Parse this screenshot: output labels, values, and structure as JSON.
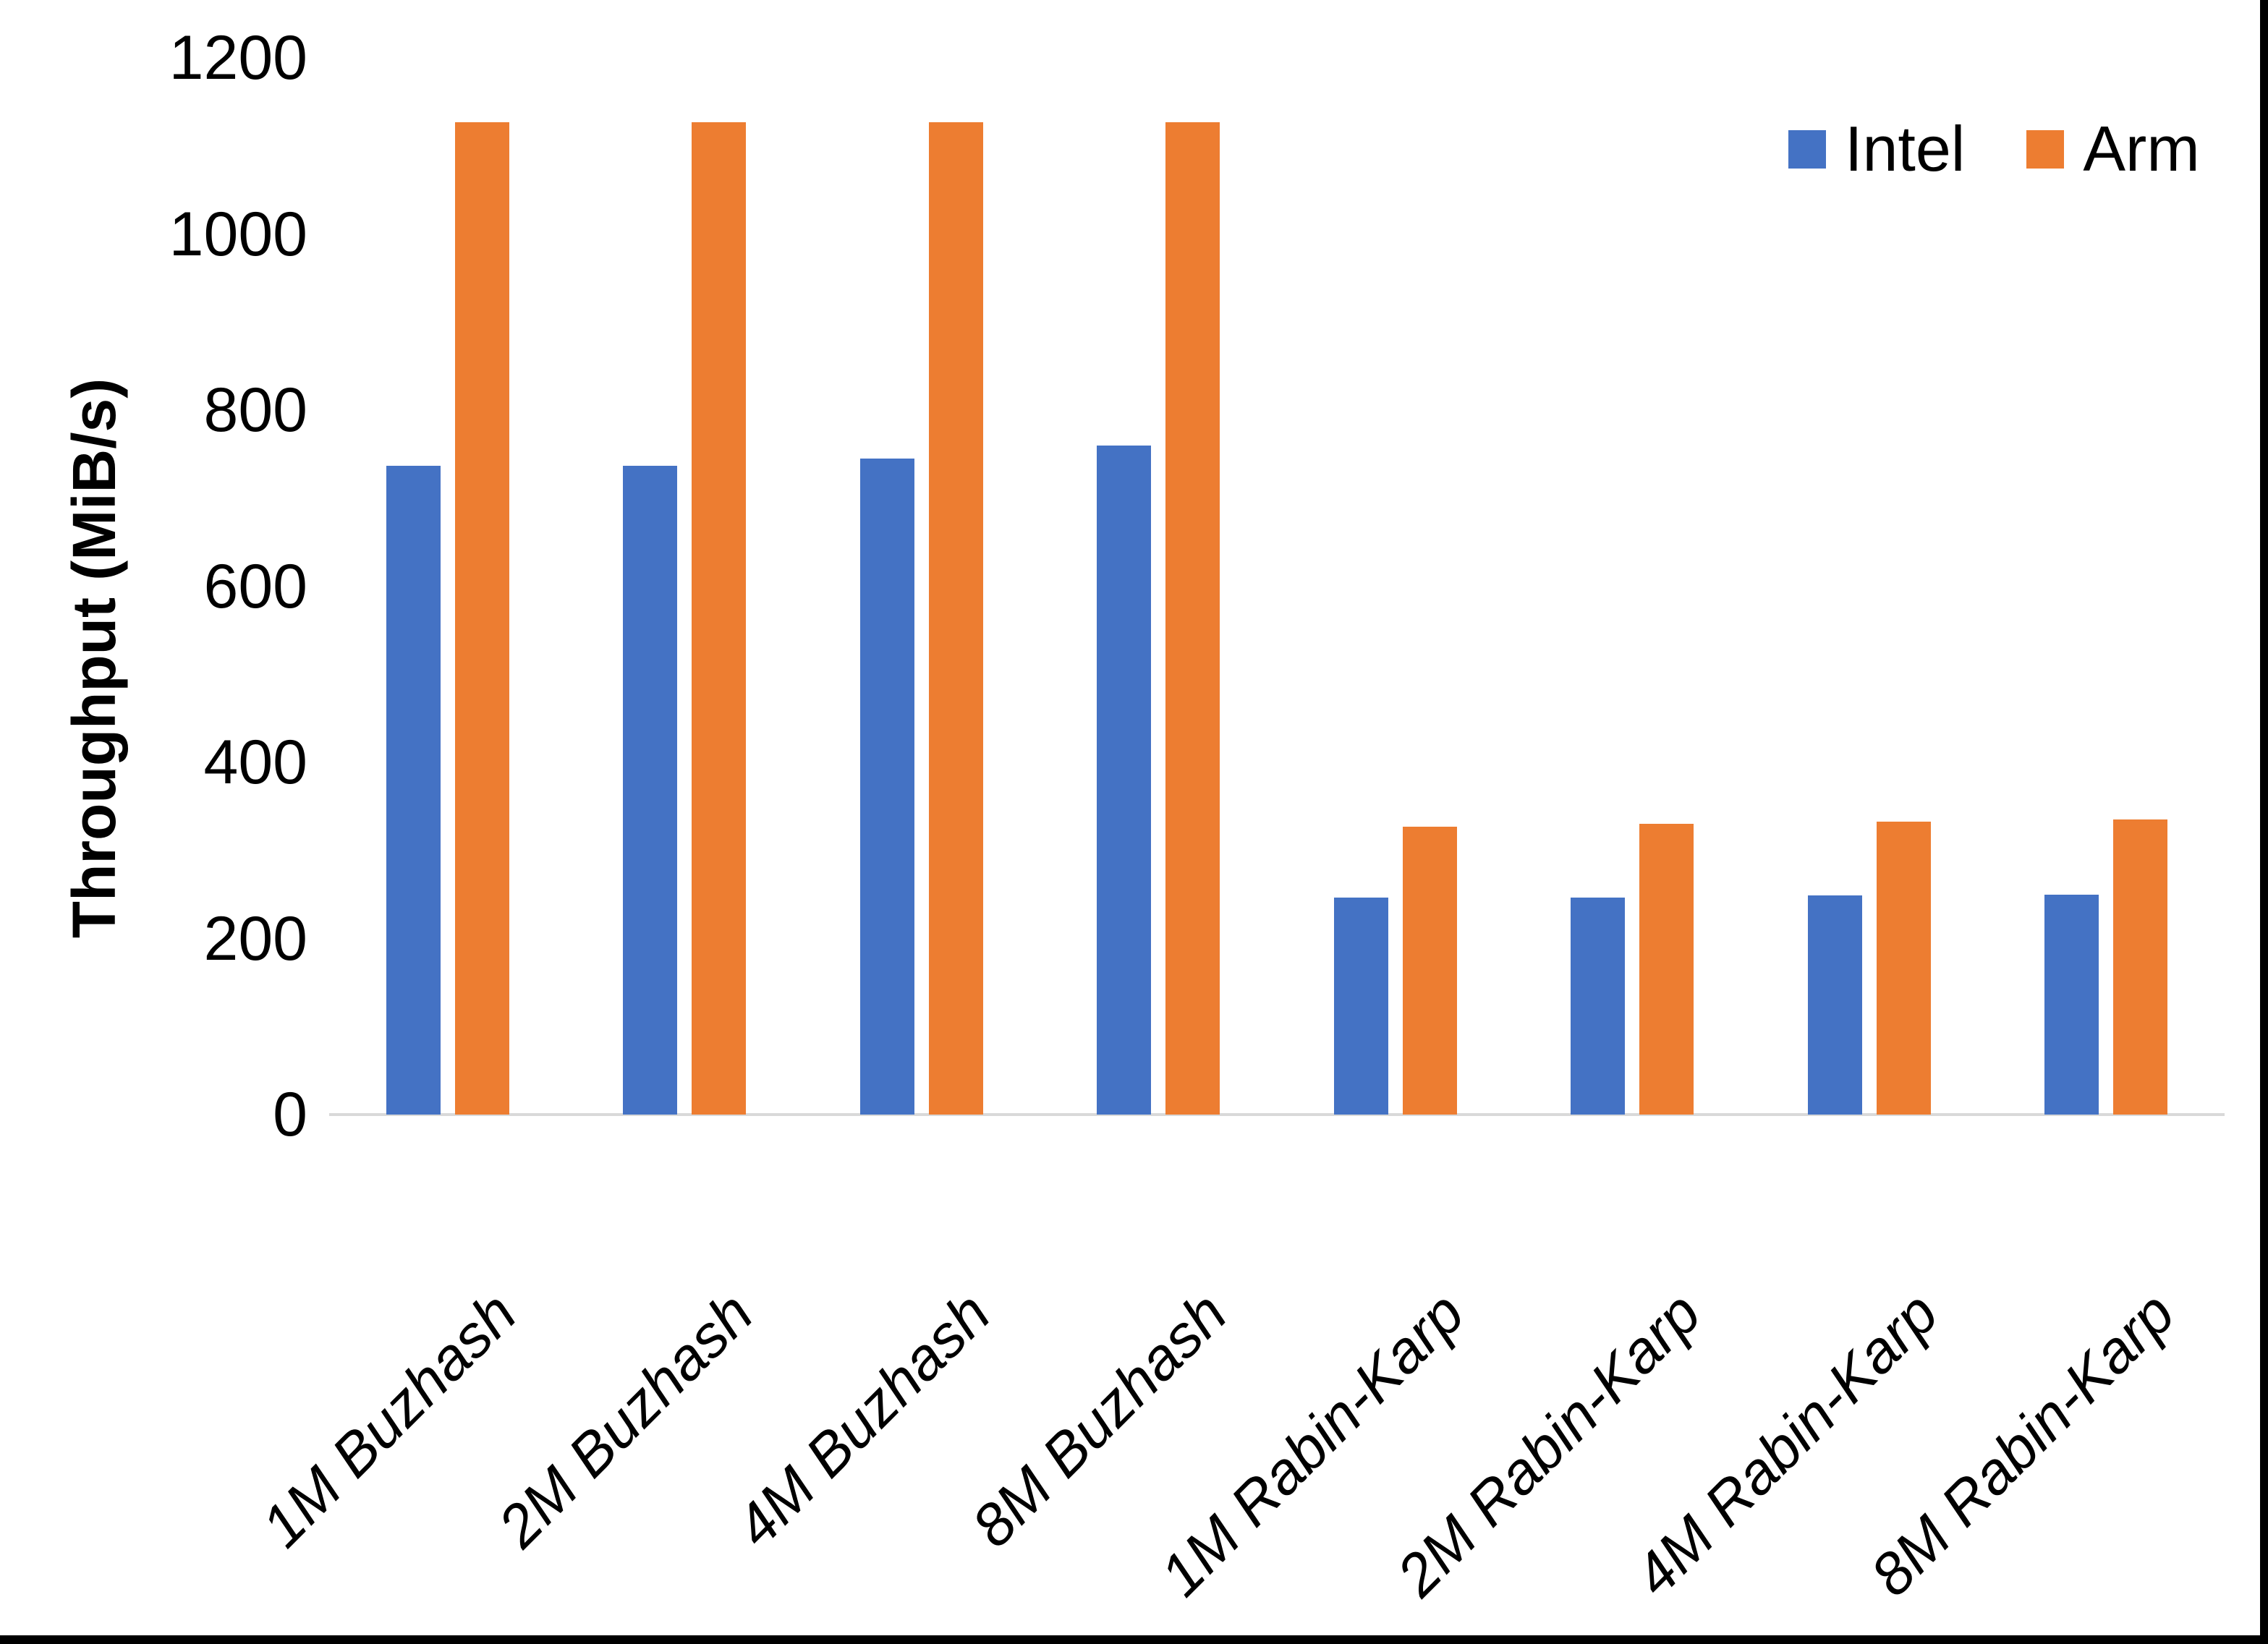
{
  "chart_data": {
    "type": "bar",
    "title": "",
    "xlabel": "",
    "ylabel": "Throughput (MiB/s)",
    "ylim": [
      0,
      1200
    ],
    "yticks": [
      0,
      200,
      400,
      600,
      800,
      1000,
      1200
    ],
    "grid": false,
    "legend_position": "top-right",
    "axis_line_color": "#D9D9D9",
    "categories": [
      "1M Buzhash",
      "2M Buzhash",
      "4M Buzhash",
      "8M Buzhash",
      "1M Rabin-Karp",
      "2M Rabin-Karp",
      "4M Rabin-Karp",
      "8M Rabin-Karp"
    ],
    "series": [
      {
        "name": "Intel",
        "color": "#4472C4",
        "values": [
          737,
          737,
          745,
          760,
          246,
          246,
          249,
          250
        ]
      },
      {
        "name": "Arm",
        "color": "#ED7D31",
        "values": [
          1127,
          1127,
          1127,
          1127,
          327,
          330,
          333,
          335
        ]
      }
    ]
  },
  "frame": {
    "right_edge_color": "#000000",
    "bottom_edge_color": "#000000"
  }
}
